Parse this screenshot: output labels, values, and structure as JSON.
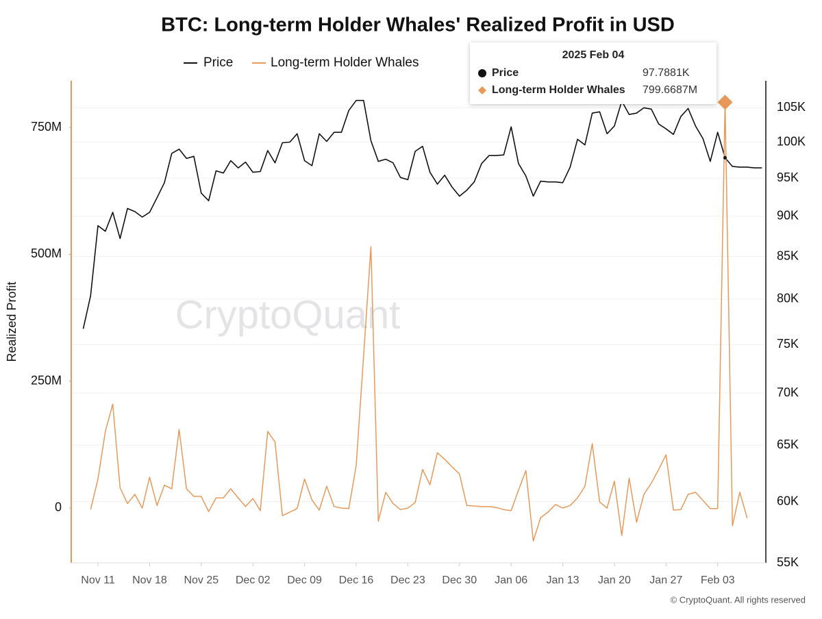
{
  "chart_data": {
    "type": "line",
    "title": "BTC: Long-term Holder Whales' Realized Profit in USD",
    "ylabel": "Realized Profit",
    "watermark": "CryptoQuant",
    "footer": "© CryptoQuant. All rights reserved",
    "x": [
      "Nov 09",
      "Nov 10",
      "Nov 11",
      "Nov 12",
      "Nov 13",
      "Nov 14",
      "Nov 15",
      "Nov 16",
      "Nov 17",
      "Nov 18",
      "Nov 19",
      "Nov 20",
      "Nov 21",
      "Nov 22",
      "Nov 23",
      "Nov 24",
      "Nov 25",
      "Nov 26",
      "Nov 27",
      "Nov 28",
      "Nov 29",
      "Nov 30",
      "Dec 01",
      "Dec 02",
      "Dec 03",
      "Dec 04",
      "Dec 05",
      "Dec 06",
      "Dec 07",
      "Dec 08",
      "Dec 09",
      "Dec 10",
      "Dec 11",
      "Dec 12",
      "Dec 13",
      "Dec 14",
      "Dec 15",
      "Dec 16",
      "Dec 17",
      "Dec 18",
      "Dec 19",
      "Dec 20",
      "Dec 21",
      "Dec 22",
      "Dec 23",
      "Dec 24",
      "Dec 25",
      "Dec 26",
      "Dec 27",
      "Dec 28",
      "Dec 29",
      "Dec 30",
      "Dec 31",
      "Jan 01",
      "Jan 02",
      "Jan 03",
      "Jan 04",
      "Jan 05",
      "Jan 06",
      "Jan 07",
      "Jan 08",
      "Jan 09",
      "Jan 10",
      "Jan 11",
      "Jan 12",
      "Jan 13",
      "Jan 14",
      "Jan 15",
      "Jan 16",
      "Jan 17",
      "Jan 18",
      "Jan 19",
      "Jan 20",
      "Jan 21",
      "Jan 22",
      "Jan 23",
      "Jan 24",
      "Jan 25",
      "Jan 26",
      "Jan 27",
      "Jan 28",
      "Jan 29",
      "Jan 30",
      "Jan 31",
      "Feb 01",
      "Feb 02",
      "Feb 03",
      "Feb 04",
      "Feb 05",
      "Feb 06",
      "Feb 07",
      "Feb 08",
      "Feb 09"
    ],
    "xticks": [
      "Nov 11",
      "Nov 18",
      "Nov 25",
      "Dec 02",
      "Dec 09",
      "Dec 16",
      "Dec 23",
      "Dec 30",
      "Jan 06",
      "Jan 13",
      "Jan 20",
      "Jan 27",
      "Feb 03"
    ],
    "series": [
      {
        "name": "Price",
        "color": "#111111",
        "axis": "y2",
        "values": [
          76700,
          80400,
          88800,
          88100,
          90500,
          87200,
          91000,
          90600,
          89900,
          90500,
          92400,
          94400,
          98400,
          99000,
          97700,
          98000,
          93000,
          92000,
          96000,
          95700,
          97400,
          96400,
          97200,
          95800,
          95900,
          98800,
          97100,
          99900,
          100000,
          101200,
          97400,
          96700,
          101200,
          100100,
          101400,
          101400,
          104600,
          106100,
          106100,
          100200,
          97300,
          97600,
          97100,
          95100,
          94800,
          98700,
          99400,
          95800,
          94200,
          95400,
          93800,
          92600,
          93400,
          94500,
          97000,
          98100,
          98100,
          98200,
          102200,
          97000,
          95300,
          92600,
          94600,
          94500,
          94500,
          94400,
          96500,
          100400,
          99600,
          104200,
          104400,
          101200,
          102300,
          106000,
          104000,
          104200,
          105000,
          104800,
          102600,
          101900,
          101100,
          103700,
          104900,
          102300,
          100500,
          97300,
          101400,
          97788.1,
          96600,
          96500,
          96500,
          96400,
          96400
        ]
      },
      {
        "name": "Long-term Holder Whales",
        "color": "#e8995a",
        "values": [
          null,
          -3000000,
          57000000,
          151000000,
          205000000,
          40000000,
          9000000,
          27000000,
          0,
          61000000,
          5000000,
          45000000,
          38000000,
          155000000,
          38000000,
          23000000,
          23000000,
          -7000000,
          20000000,
          20000000,
          38000000,
          20000000,
          3000000,
          19000000,
          -5000000,
          151000000,
          130000000,
          -15000000,
          -8000000,
          -1000000,
          57000000,
          16000000,
          -4000000,
          43000000,
          3000000,
          0,
          -1000000,
          84000000,
          300000000,
          515000000,
          -26000000,
          31000000,
          9000000,
          -3000000,
          0,
          11000000,
          76000000,
          46000000,
          109000000,
          96000000,
          81000000,
          67000000,
          5000000,
          4000000,
          3000000,
          3000000,
          1000000,
          -3000000,
          -5000000,
          35000000,
          74000000,
          -65000000,
          -19000000,
          -8000000,
          7000000,
          0,
          5000000,
          20000000,
          43000000,
          127000000,
          12000000,
          0,
          53000000,
          -54000000,
          59000000,
          -28000000,
          27000000,
          49000000,
          76000000,
          105000000,
          -4000000,
          -3000000,
          27000000,
          31000000,
          15000000,
          -1000000,
          -1000000,
          799668700,
          -35000000,
          31000000,
          -20000000,
          null,
          null
        ]
      }
    ],
    "ylim": [
      -108000000,
      842000000
    ],
    "yticks": [
      {
        "value": 0,
        "label": "0"
      },
      {
        "value": 250000000,
        "label": "250M"
      },
      {
        "value": 500000000,
        "label": "500M"
      },
      {
        "value": 750000000,
        "label": "750M"
      }
    ],
    "y2lim": [
      55000,
      109100
    ],
    "y2scale": "log",
    "y2ticks": [
      {
        "value": 55000,
        "label": "55K"
      },
      {
        "value": 60000,
        "label": "60K"
      },
      {
        "value": 65000,
        "label": "65K"
      },
      {
        "value": 70000,
        "label": "70K"
      },
      {
        "value": 75000,
        "label": "75K"
      },
      {
        "value": 80000,
        "label": "80K"
      },
      {
        "value": 85000,
        "label": "85K"
      },
      {
        "value": 90000,
        "label": "90K"
      },
      {
        "value": 95000,
        "label": "95K"
      },
      {
        "value": 100000,
        "label": "100K"
      },
      {
        "value": 105000,
        "label": "105K"
      }
    ],
    "grid": true,
    "tooltip": {
      "date": "2025 Feb 04",
      "values": [
        97788.1,
        799668700
      ],
      "value_labels": [
        "97.7881K",
        "799.6687M"
      ]
    }
  }
}
